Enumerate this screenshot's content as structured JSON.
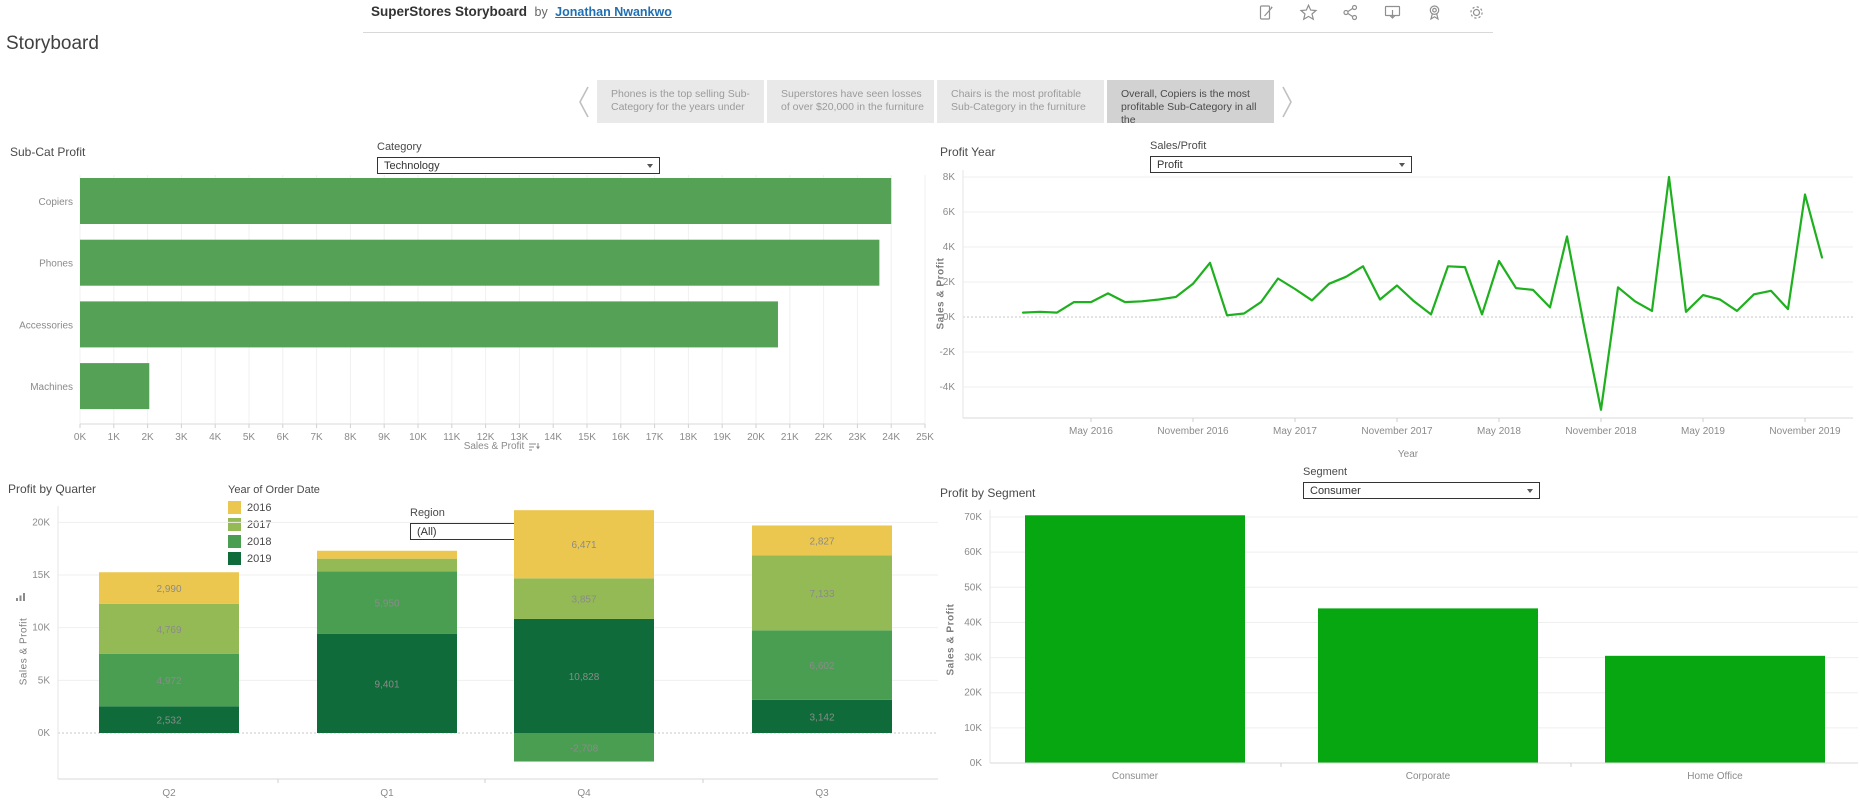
{
  "header": {
    "title": "SuperStores Storyboard",
    "by_text": "by",
    "author": "Jonathan Nwankwo",
    "icons": [
      "edit",
      "favorite-star",
      "share",
      "download",
      "award",
      "settings-gear"
    ]
  },
  "page_title": "Storyboard",
  "story_nav": {
    "captions": [
      {
        "text": "Phones is the top selling Sub-Category for the years under",
        "selected": false
      },
      {
        "text": "Superstores have seen losses of over $20,000 in the furniture",
        "selected": false
      },
      {
        "text": "Chairs is the most profitable Sub-Category in the furniture",
        "selected": false
      },
      {
        "text": "Overall, Copiers is the most profitable Sub-Category in all the",
        "selected": true
      }
    ]
  },
  "chart_data": [
    {
      "id": "subcat",
      "type": "bar",
      "orientation": "horizontal",
      "title": "Sub-Cat Profit",
      "filter": {
        "label": "Category",
        "value": "Technology"
      },
      "categories": [
        "Copiers",
        "Phones",
        "Accessories",
        "Machines"
      ],
      "values": [
        24000,
        23650,
        20650,
        2050
      ],
      "xlim": [
        0,
        25000
      ],
      "x_ticks": [
        "0K",
        "1K",
        "2K",
        "3K",
        "4K",
        "5K",
        "6K",
        "7K",
        "8K",
        "9K",
        "10K",
        "11K",
        "12K",
        "13K",
        "14K",
        "15K",
        "16K",
        "17K",
        "18K",
        "19K",
        "20K",
        "21K",
        "22K",
        "23K",
        "24K",
        "25K"
      ],
      "xlabel": "Sales & Profit",
      "bar_color": "#55a155",
      "grid": true
    },
    {
      "id": "profit_year",
      "type": "line",
      "title": "Profit Year",
      "filter": {
        "label": "Sales/Profit",
        "value": "Profit"
      },
      "x_description": "monthly, January 2016 - December 2019",
      "values": [
        250,
        300,
        250,
        850,
        850,
        1350,
        850,
        900,
        1000,
        1150,
        1900,
        3100,
        100,
        200,
        850,
        2200,
        1600,
        950,
        1900,
        2300,
        2900,
        1000,
        1800,
        900,
        150,
        2900,
        2850,
        150,
        3200,
        1650,
        1550,
        550,
        4600,
        -500,
        -5300,
        1700,
        900,
        350,
        8000,
        300,
        1250,
        1000,
        350,
        1300,
        1500,
        450,
        7000,
        3400
      ],
      "x_tick_labels": [
        "May 2016",
        "November 2016",
        "May 2017",
        "November 2017",
        "May 2018",
        "November 2018",
        "May 2019",
        "November 2019"
      ],
      "x_tick_indices": [
        4,
        10,
        16,
        22,
        28,
        34,
        40,
        46
      ],
      "y_ticks": [
        {
          "v": 8000,
          "label": "8K"
        },
        {
          "v": 6000,
          "label": "6K"
        },
        {
          "v": 4000,
          "label": "4K"
        },
        {
          "v": 2000,
          "label": "2K"
        },
        {
          "v": 0,
          "label": "0K"
        },
        {
          "v": -2000,
          "label": "-2K"
        },
        {
          "v": -4000,
          "label": "-4K"
        }
      ],
      "ylim": [
        -5600,
        8400
      ],
      "ylabel": "Sales & Profit",
      "xlabel": "Year",
      "line_color": "#1eb01e",
      "grid": true
    },
    {
      "id": "quarter",
      "type": "stacked-bar",
      "title": "Profit by Quarter",
      "filter": {
        "label": "Region",
        "value": "(All)"
      },
      "legend": {
        "title": "Year of Order Date",
        "items": [
          {
            "label": "2016",
            "color": "#ecc750"
          },
          {
            "label": "2017",
            "color": "#94ba55"
          },
          {
            "label": "2018",
            "color": "#4a9e52"
          },
          {
            "label": "2019",
            "color": "#0f6b39"
          }
        ]
      },
      "categories": [
        "Q2",
        "Q1",
        "Q4",
        "Q3"
      ],
      "bars": [
        {
          "category": "Q2",
          "segments": [
            {
              "year": "2019",
              "value": 2532,
              "label": "2,532"
            },
            {
              "year": "2018",
              "value": 4972,
              "label": "4,972"
            },
            {
              "year": "2017",
              "value": 4769,
              "label": "4,769"
            },
            {
              "year": "2016",
              "value": 2990,
              "label": "2,990"
            }
          ]
        },
        {
          "category": "Q1",
          "segments": [
            {
              "year": "2019",
              "value": 9401,
              "label": "9,401"
            },
            {
              "year": "2018",
              "value": 5950,
              "label": "5,950"
            },
            {
              "year": "2017",
              "value": 1200,
              "label": ""
            },
            {
              "year": "2016",
              "value": 750,
              "label": ""
            }
          ]
        },
        {
          "category": "Q4",
          "segments": [
            {
              "year": "2018",
              "value": -2708,
              "label": "-2,708"
            },
            {
              "year": "2019",
              "value": 10828,
              "label": "10,828"
            },
            {
              "year": "2017",
              "value": 3857,
              "label": "3,857"
            },
            {
              "year": "2016",
              "value": 6471,
              "label": "6,471"
            }
          ]
        },
        {
          "category": "Q3",
          "segments": [
            {
              "year": "2019",
              "value": 3142,
              "label": "3,142"
            },
            {
              "year": "2018",
              "value": 6602,
              "label": "6,602"
            },
            {
              "year": "2017",
              "value": 7133,
              "label": "7,133"
            },
            {
              "year": "2016",
              "value": 2827,
              "label": "2,827"
            }
          ]
        }
      ],
      "y_ticks": [
        {
          "v": 20000,
          "label": "20K"
        },
        {
          "v": 15000,
          "label": "15K"
        },
        {
          "v": 10000,
          "label": "10K"
        },
        {
          "v": 5000,
          "label": "5K"
        },
        {
          "v": 0,
          "label": "0K"
        }
      ],
      "ylabel": "Sales & Profit",
      "grid": true
    },
    {
      "id": "segment",
      "type": "bar",
      "orientation": "vertical",
      "title": "Profit by Segment",
      "filter": {
        "label": "Segment",
        "value": "Consumer"
      },
      "categories": [
        "Consumer",
        "Corporate",
        "Home Office"
      ],
      "values": [
        70500,
        44000,
        30500
      ],
      "y_ticks": [
        {
          "v": 70000,
          "label": "70K"
        },
        {
          "v": 60000,
          "label": "60K"
        },
        {
          "v": 50000,
          "label": "50K"
        },
        {
          "v": 40000,
          "label": "40K"
        },
        {
          "v": 30000,
          "label": "30K"
        },
        {
          "v": 20000,
          "label": "20K"
        },
        {
          "v": 10000,
          "label": "10K"
        },
        {
          "v": 0,
          "label": "0K"
        }
      ],
      "ylabel": "Sales & Profit",
      "bar_color": "#07a711",
      "grid": true
    }
  ],
  "colors": {
    "subcat_bar": "#55a155",
    "line_green": "#1eb01e",
    "segment_bar": "#07a711",
    "caption_bg": "#e9e9e9",
    "caption_selected_bg": "#d2d2d2",
    "link_blue": "#1f6fb2"
  }
}
